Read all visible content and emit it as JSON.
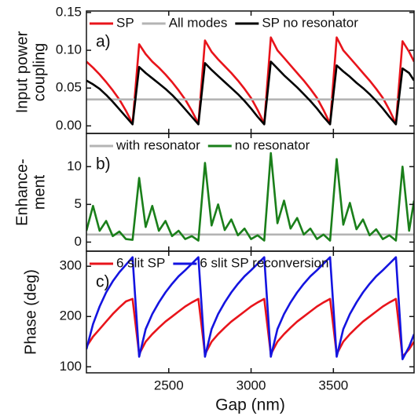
{
  "chart_data": [
    {
      "type": "line",
      "ylabel": [
        "Input power",
        "coupling"
      ],
      "annotation": "a)",
      "xlim": [
        2000,
        3990
      ],
      "xticks": [
        2500,
        3000,
        3500
      ],
      "ylim": [
        -0.01,
        0.152
      ],
      "yticks": [
        {
          "value": 0,
          "label": "0.00"
        },
        {
          "value": 0.05,
          "label": "0.05"
        },
        {
          "value": 0.1,
          "label": "0.10"
        },
        {
          "value": 0.15,
          "label": "0.15"
        }
      ],
      "x": [
        2000,
        2040,
        2080,
        2120,
        2160,
        2200,
        2240,
        2280,
        2320,
        2360,
        2400,
        2440,
        2480,
        2520,
        2560,
        2600,
        2640,
        2680,
        2720,
        2760,
        2800,
        2840,
        2880,
        2920,
        2960,
        3000,
        3040,
        3080,
        3120,
        3160,
        3200,
        3240,
        3280,
        3320,
        3360,
        3400,
        3440,
        3480,
        3520,
        3560,
        3600,
        3640,
        3680,
        3720,
        3760,
        3800,
        3840,
        3880,
        3920,
        3960,
        3990
      ],
      "series": [
        {
          "name": "SP",
          "color": "#e8141b",
          "values": [
            0.085,
            0.077,
            0.068,
            0.058,
            0.047,
            0.035,
            0.02,
            0.003,
            0.108,
            0.095,
            0.085,
            0.077,
            0.068,
            0.058,
            0.047,
            0.035,
            0.02,
            0.003,
            0.113,
            0.098,
            0.088,
            0.079,
            0.07,
            0.06,
            0.049,
            0.037,
            0.021,
            0.003,
            0.117,
            0.1,
            0.09,
            0.08,
            0.07,
            0.06,
            0.049,
            0.037,
            0.021,
            0.003,
            0.117,
            0.1,
            0.09,
            0.08,
            0.07,
            0.06,
            0.049,
            0.037,
            0.021,
            0.003,
            0.112,
            0.098,
            0.085
          ]
        },
        {
          "name": "All modes",
          "color": "#b4b4b4",
          "values": [
            0.035,
            0.035,
            0.035,
            0.035,
            0.035,
            0.035,
            0.035,
            0.035,
            0.035,
            0.035,
            0.035,
            0.035,
            0.035,
            0.035,
            0.035,
            0.035,
            0.035,
            0.035,
            0.035,
            0.035,
            0.035,
            0.035,
            0.035,
            0.035,
            0.035,
            0.035,
            0.035,
            0.035,
            0.035,
            0.035,
            0.035,
            0.035,
            0.035,
            0.035,
            0.035,
            0.035,
            0.035,
            0.035,
            0.035,
            0.035,
            0.035,
            0.035,
            0.035,
            0.035,
            0.035,
            0.035,
            0.035,
            0.035,
            0.035,
            0.035,
            0.035
          ]
        },
        {
          "name": "SP no resonator",
          "color": "#000000",
          "values": [
            0.06,
            0.055,
            0.049,
            0.041,
            0.032,
            0.022,
            0.012,
            0.002,
            0.078,
            0.07,
            0.063,
            0.056,
            0.049,
            0.041,
            0.032,
            0.022,
            0.012,
            0.002,
            0.083,
            0.074,
            0.066,
            0.058,
            0.05,
            0.042,
            0.033,
            0.023,
            0.012,
            0.002,
            0.085,
            0.076,
            0.067,
            0.059,
            0.051,
            0.042,
            0.033,
            0.023,
            0.012,
            0.002,
            0.08,
            0.072,
            0.065,
            0.057,
            0.05,
            0.042,
            0.033,
            0.023,
            0.012,
            0.002,
            0.076,
            0.07,
            0.06
          ]
        }
      ]
    },
    {
      "type": "line",
      "ylabel": [
        "Enhance-",
        "ment"
      ],
      "annotation": "b)",
      "xlim": [
        2000,
        3990
      ],
      "xticks": [
        2500,
        3000,
        3500
      ],
      "ylim": [
        -1.2,
        14.4
      ],
      "yticks": [
        0,
        5,
        10
      ],
      "x": [
        2000,
        2040,
        2080,
        2120,
        2160,
        2200,
        2240,
        2280,
        2320,
        2360,
        2400,
        2440,
        2480,
        2520,
        2560,
        2600,
        2640,
        2680,
        2720,
        2760,
        2800,
        2840,
        2880,
        2920,
        2960,
        3000,
        3040,
        3080,
        3120,
        3160,
        3200,
        3240,
        3280,
        3320,
        3360,
        3400,
        3440,
        3480,
        3520,
        3560,
        3600,
        3640,
        3680,
        3720,
        3760,
        3800,
        3840,
        3880,
        3920,
        3960,
        3990
      ],
      "series": [
        {
          "name": "with resonator",
          "color": "#b4b4b4",
          "values": [
            1,
            1,
            1,
            1,
            1,
            1,
            1,
            1,
            1,
            1,
            1,
            1,
            1,
            1,
            1,
            1,
            1,
            1,
            1,
            1,
            1,
            1,
            1,
            1,
            1,
            1,
            1,
            1,
            1,
            1,
            1,
            1,
            1,
            1,
            1,
            1,
            1,
            1,
            1,
            1,
            1,
            1,
            1,
            1,
            1,
            1,
            1,
            1,
            1,
            1,
            1
          ]
        },
        {
          "name": "no resonator",
          "color": "#1a7f1a",
          "values": [
            1.5,
            4.8,
            1.5,
            2.8,
            0.8,
            1.4,
            0.4,
            0.3,
            8.5,
            2,
            4.8,
            1.5,
            2.8,
            0.8,
            1.5,
            0.4,
            0.8,
            0.2,
            10.5,
            2.2,
            5,
            1.6,
            3,
            0.9,
            1.8,
            0.4,
            0.9,
            0.2,
            11.8,
            2.5,
            5.5,
            1.8,
            3.2,
            1,
            1.8,
            0.4,
            1,
            0.2,
            11,
            2.3,
            5.2,
            1.7,
            3,
            0.9,
            1.7,
            0.4,
            0.9,
            0.2,
            10,
            1.5,
            5.5
          ]
        }
      ]
    },
    {
      "type": "line",
      "ylabel": [
        "Phase (deg)"
      ],
      "annotation": "c)",
      "xlabel": "Gap (nm)",
      "xlim": [
        2000,
        3990
      ],
      "xticks": [
        2500,
        3000,
        3500
      ],
      "ylim": [
        88,
        330
      ],
      "yticks": [
        100,
        200,
        300
      ],
      "x": [
        2000,
        2040,
        2080,
        2120,
        2160,
        2200,
        2240,
        2280,
        2320,
        2360,
        2400,
        2440,
        2480,
        2520,
        2560,
        2600,
        2640,
        2680,
        2720,
        2760,
        2800,
        2840,
        2880,
        2920,
        2960,
        3000,
        3040,
        3080,
        3120,
        3160,
        3200,
        3240,
        3280,
        3320,
        3360,
        3400,
        3440,
        3480,
        3520,
        3560,
        3600,
        3640,
        3680,
        3720,
        3760,
        3800,
        3840,
        3880,
        3920,
        3960,
        3990
      ],
      "series": [
        {
          "name": "6 slit SP",
          "color": "#e8141b",
          "values": [
            140,
            160,
            175,
            190,
            205,
            218,
            230,
            235,
            125,
            150,
            165,
            178,
            190,
            200,
            210,
            220,
            228,
            235,
            125,
            150,
            165,
            178,
            190,
            200,
            210,
            220,
            228,
            235,
            125,
            150,
            165,
            178,
            190,
            200,
            210,
            220,
            228,
            235,
            125,
            150,
            165,
            178,
            190,
            200,
            210,
            220,
            228,
            235,
            120,
            135,
            150
          ]
        },
        {
          "name": "6 slit SP reconversion",
          "color": "#1414e0",
          "values": [
            135,
            185,
            220,
            248,
            270,
            288,
            303,
            318,
            120,
            175,
            205,
            228,
            248,
            265,
            280,
            292,
            305,
            318,
            120,
            175,
            205,
            228,
            248,
            265,
            280,
            292,
            305,
            318,
            120,
            175,
            205,
            228,
            248,
            265,
            280,
            292,
            305,
            318,
            120,
            175,
            205,
            228,
            248,
            265,
            280,
            292,
            305,
            318,
            115,
            140,
            165
          ]
        }
      ]
    }
  ]
}
